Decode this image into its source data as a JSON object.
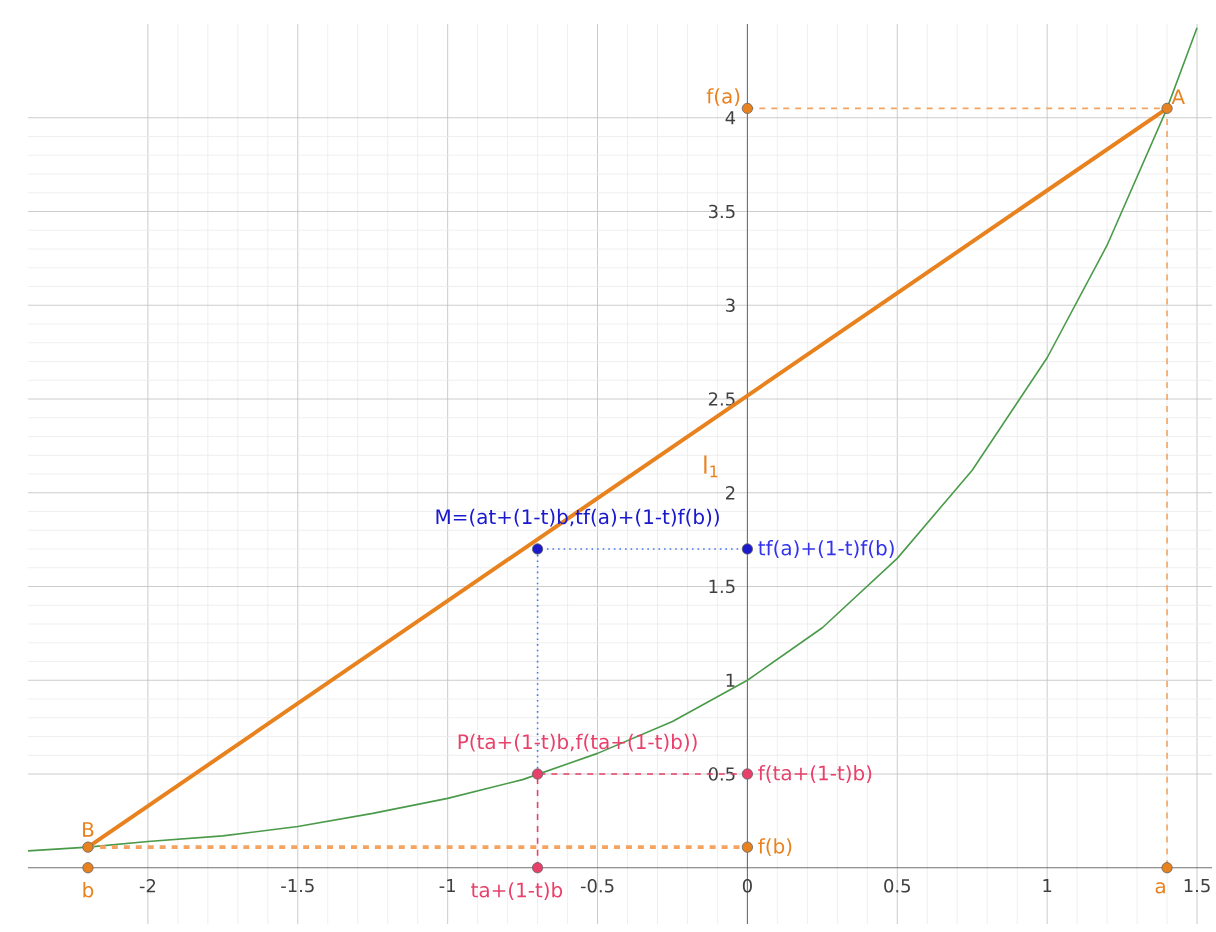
{
  "chart_data": {
    "type": "line",
    "xlim": [
      -2.4,
      1.55
    ],
    "ylim": [
      -0.3,
      4.5
    ],
    "xticks": [
      -2,
      -1.5,
      -1,
      -0.5,
      0,
      0.5,
      1,
      1.5
    ],
    "yticks": [
      0.5,
      1,
      1.5,
      2,
      2.5,
      3,
      3.5,
      4
    ],
    "grid": true,
    "legend": false,
    "series": [
      {
        "color": "#4a9a4a",
        "line_style": "solid",
        "marker": "none",
        "x": [
          -2.4,
          -2.2,
          -2,
          -1.75,
          -1.5,
          -1.25,
          -1,
          -0.75,
          -0.5,
          -0.25,
          0,
          0.25,
          0.5,
          0.75,
          1,
          1.2,
          1.4,
          1.5
        ],
        "values": [
          0.09,
          0.11,
          0.14,
          0.17,
          0.22,
          0.29,
          0.37,
          0.47,
          0.61,
          0.78,
          1,
          1.28,
          1.65,
          2.12,
          2.72,
          3.32,
          4.05,
          4.48
        ]
      },
      {
        "name": "l$_{1}$",
        "color": "#e8821e",
        "line_style": "solid",
        "marker": "none",
        "x": [
          -2.2,
          1.4
        ],
        "values": [
          0.11,
          4.05
        ]
      },
      {
        "color": "#f4a460",
        "line_style": "dashed",
        "marker": "none",
        "x": [
          0,
          1.4,
          1.4
        ],
        "values": [
          4.05,
          4.05,
          0
        ]
      },
      {
        "color": "#f4a460",
        "line_style": "dashed",
        "marker": "none",
        "x": [
          -2.2,
          0
        ],
        "values": [
          0.11,
          0.11
        ]
      },
      {
        "color": "#4477ee",
        "line_style": "dotted",
        "marker": "none",
        "x": [
          -0.7,
          -0.7,
          0
        ],
        "values": [
          0.5,
          1.7,
          1.7
        ]
      },
      {
        "color": "#e8406a",
        "line_style": "dashed",
        "marker": "none",
        "x": [
          -0.7,
          -0.7,
          0
        ],
        "values": [
          0,
          0.5,
          0.5
        ]
      },
      {
        "type": "scatter",
        "color": "#e8821e",
        "marker": "circle",
        "x": [
          1.4,
          -2.2,
          0,
          0,
          -2.2,
          1.4
        ],
        "values": [
          4.05,
          0.11,
          4.05,
          0.11,
          0,
          0
        ]
      },
      {
        "type": "scatter",
        "color": "#1a1acc",
        "marker": "circle",
        "x": [
          -0.7,
          0
        ],
        "values": [
          1.7,
          1.7
        ]
      },
      {
        "type": "scatter",
        "color": "#e8406a",
        "marker": "circle",
        "x": [
          -0.7,
          0,
          -0.7
        ],
        "values": [
          0.5,
          0.5,
          0
        ]
      }
    ],
    "annotations": [
      {
        "text": "A",
        "x": 1.4,
        "y": 4.05
      },
      {
        "text": "B",
        "x": -2.2,
        "y": 0.11
      },
      {
        "text": "M=(at+(1-t)b,tf(a)+(1-t)f(b))",
        "x": -0.7,
        "y": 1.7
      },
      {
        "text": "P(ta+(1-t)b,f(ta+(1-t)b))",
        "x": -0.7,
        "y": 0.5
      },
      {
        "text": "f(a)",
        "x": 0,
        "y": 4.05
      },
      {
        "text": "tf(a)+(1-t)f(b)",
        "x": 0,
        "y": 1.7
      },
      {
        "text": "f(ta+(1-t)b)",
        "x": 0,
        "y": 0.5
      },
      {
        "text": "f(b)",
        "x": 0,
        "y": 0.11
      },
      {
        "text": "b",
        "x": -2.2,
        "y": 0
      },
      {
        "text": "ta+(1-t)b",
        "x": -0.7,
        "y": 0
      },
      {
        "text": "a",
        "x": 1.4,
        "y": 0
      }
    ]
  }
}
